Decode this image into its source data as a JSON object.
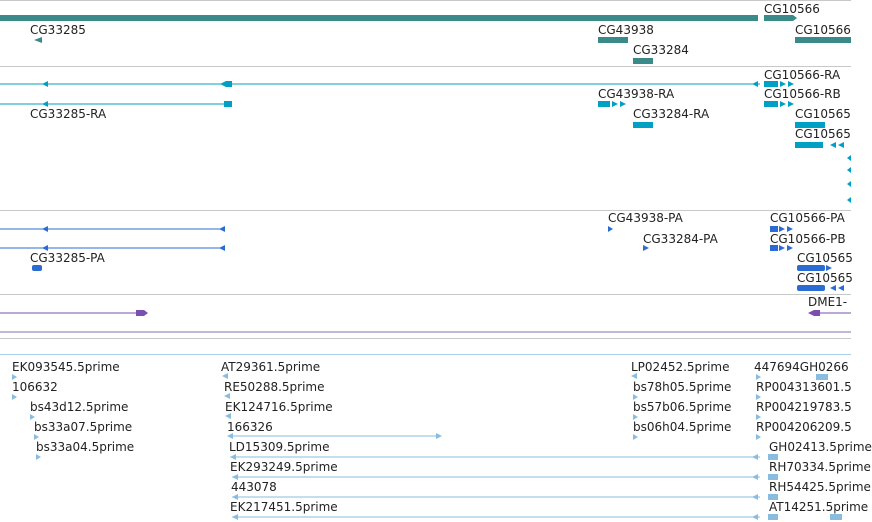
{
  "colors": {
    "gene": "#3a8a8a",
    "mrna": "#00a0c4",
    "protein": "#2b6cd4",
    "purple": "#7a4fb0",
    "est": "#88bde0",
    "divider": "#c8c8c8"
  },
  "tracks": {
    "genes": {
      "features": [
        {
          "label": "CG10566"
        },
        {
          "label": "CG33285"
        },
        {
          "label": "CG43938"
        },
        {
          "label": "CG33284"
        },
        {
          "label": "CG10566"
        }
      ]
    },
    "mrna": {
      "features": [
        {
          "label": "CG10566-RA"
        },
        {
          "label": "CG10566-RB"
        },
        {
          "label": "CG43938-RA"
        },
        {
          "label": "CG33285-RA"
        },
        {
          "label": "CG33284-RA"
        },
        {
          "label": "CG10565"
        },
        {
          "label": "CG10565"
        }
      ]
    },
    "proteins": {
      "features": [
        {
          "label": "CG43938-PA"
        },
        {
          "label": "CG10566-PA"
        },
        {
          "label": "CG33284-PA"
        },
        {
          "label": "CG10566-PB"
        },
        {
          "label": "CG33285-PA"
        },
        {
          "label": "CG10565"
        },
        {
          "label": "CG10565"
        }
      ]
    },
    "te": {
      "features": [
        {
          "label": "DME1-"
        }
      ]
    },
    "ests": {
      "features": [
        {
          "label": "EK093545.5prime"
        },
        {
          "label": "106632"
        },
        {
          "label": "bs43d12.5prime"
        },
        {
          "label": "bs33a07.5prime"
        },
        {
          "label": "bs33a04.5prime"
        },
        {
          "label": "AT29361.5prime"
        },
        {
          "label": "RE50288.5prime"
        },
        {
          "label": "EK124716.5prime"
        },
        {
          "label": "166326"
        },
        {
          "label": "LD15309.5prime"
        },
        {
          "label": "EK293249.5prime"
        },
        {
          "label": "443078"
        },
        {
          "label": "EK217451.5prime"
        },
        {
          "label": "LP02452.5prime"
        },
        {
          "label": "bs78h05.5prime"
        },
        {
          "label": "bs57b06.5prime"
        },
        {
          "label": "bs06h04.5prime"
        },
        {
          "label": "447694GH0266"
        },
        {
          "label": "RP004313601.5"
        },
        {
          "label": "RP004219783.5"
        },
        {
          "label": "RP004206209.5"
        },
        {
          "label": "GH02413.5prime"
        },
        {
          "label": "RH70334.5prime"
        },
        {
          "label": "RH54425.5prime"
        },
        {
          "label": "AT14251.5prime"
        }
      ]
    }
  }
}
